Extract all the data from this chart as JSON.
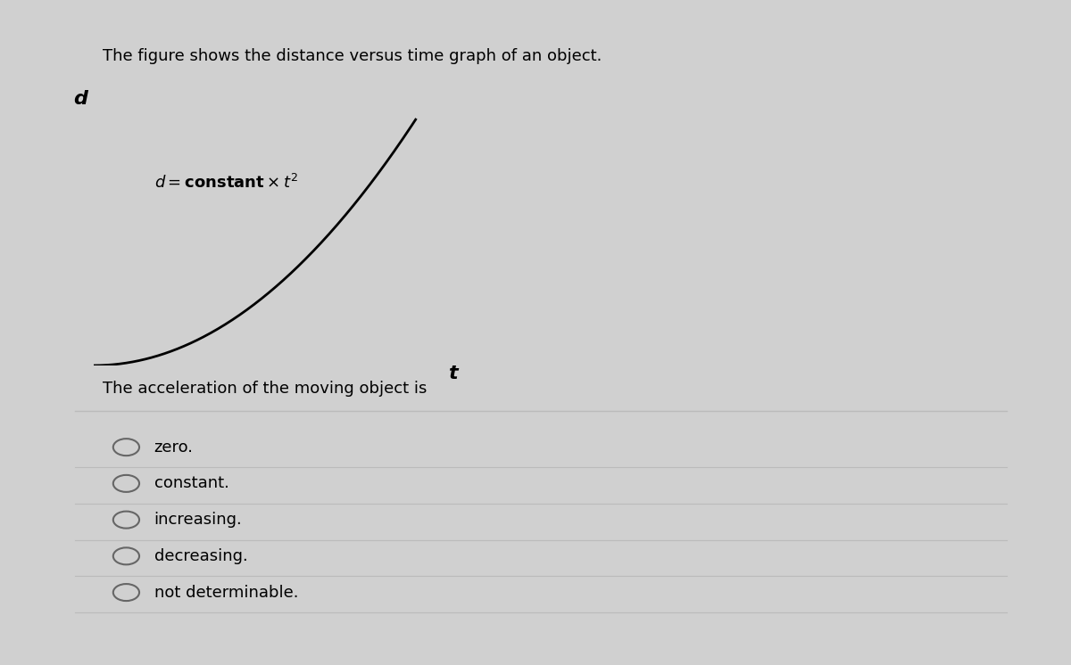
{
  "background_color": "#d0d0d0",
  "card_color": "#efefef",
  "title_text": "The figure shows the distance versus time graph of an object.",
  "title_fontsize": 13,
  "xlabel": "t",
  "ylabel": "d",
  "axis_label_fontsize": 15,
  "question_text": "The acceleration of the moving object is",
  "question_fontsize": 13,
  "options": [
    "zero.",
    "constant.",
    "increasing.",
    "decreasing.",
    "not determinable."
  ],
  "option_fontsize": 13,
  "curve_color": "#000000",
  "separator_color": "#bbbbbb",
  "circle_color": "#666666"
}
